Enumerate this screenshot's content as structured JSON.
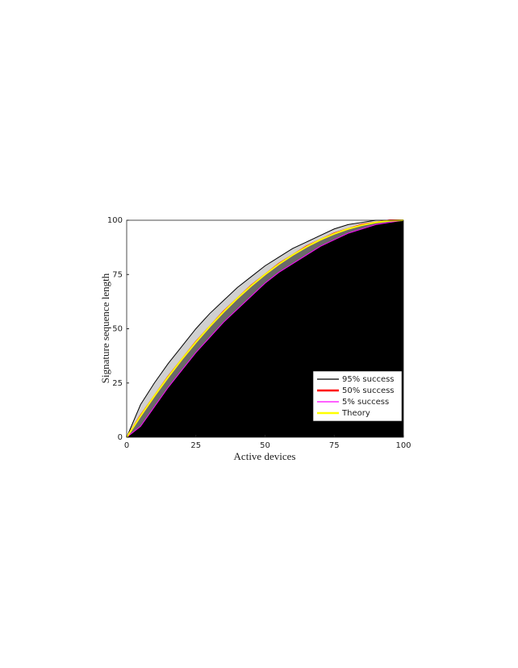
{
  "chart_data": {
    "type": "line",
    "xlabel": "Active devices",
    "ylabel": "Signature sequence length",
    "x": [
      0,
      5,
      10,
      15,
      20,
      25,
      30,
      35,
      40,
      45,
      50,
      55,
      60,
      65,
      70,
      75,
      80,
      85,
      90,
      95,
      100
    ],
    "series": [
      {
        "name": "95% success",
        "color": "#000000",
        "values": [
          0,
          15,
          25,
          34,
          42,
          50,
          57,
          63,
          69,
          74,
          79,
          83,
          87,
          90,
          93,
          96,
          98,
          99,
          100,
          100,
          100
        ]
      },
      {
        "name": "50% success",
        "color": "#ff0000",
        "values": [
          0,
          10,
          19,
          28,
          36,
          44,
          51,
          58,
          64,
          70,
          75,
          80,
          84,
          88,
          91,
          94,
          96,
          98,
          99,
          100,
          100
        ]
      },
      {
        "name": "5% success",
        "color": "#ff00ff",
        "values": [
          0,
          5,
          14,
          23,
          31,
          39,
          46,
          53,
          59,
          65,
          71,
          76,
          80,
          84,
          88,
          91,
          94,
          96,
          98,
          99,
          100
        ]
      },
      {
        "name": "Theory",
        "color": "#ffff00",
        "values": [
          0,
          9.75,
          19,
          27.75,
          36,
          43.75,
          51,
          57.75,
          64,
          69.75,
          75,
          79.75,
          84,
          87.75,
          91,
          93.75,
          96,
          97.75,
          99,
          99.75,
          100
        ]
      }
    ],
    "xlim": [
      0,
      100
    ],
    "ylim": [
      0,
      100
    ],
    "xticks": [
      0,
      25,
      50,
      75,
      100
    ],
    "yticks": [
      0,
      25,
      50,
      75,
      100
    ],
    "legend": "lower right"
  }
}
